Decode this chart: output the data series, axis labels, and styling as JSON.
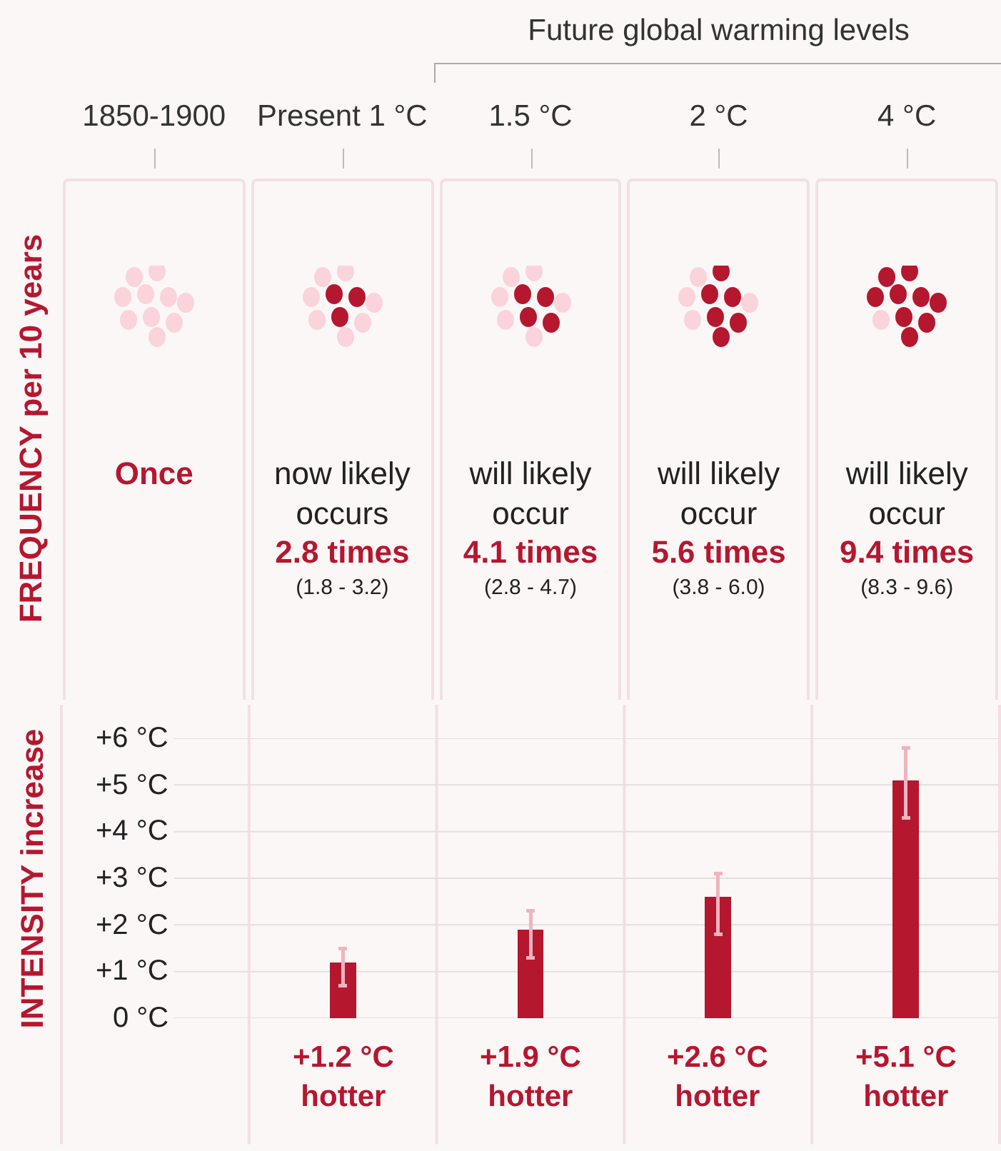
{
  "chart_data": [
    {
      "type": "other",
      "ylabel": "FREQUENCY per 10 years",
      "annotations": [
        "Future global warming levels"
      ],
      "categories": [
        "1850-1900",
        "Present 1 °C",
        "1.5 °C",
        "2 °C",
        "4 °C"
      ],
      "values": [
        null,
        2.8,
        4.1,
        5.6,
        9.4
      ],
      "color": "#b5172f",
      "value_labels": [
        "Once",
        "now likely\noccurs\n2.8 times\n(1.8 - 3.2)",
        "will likely\noccur\n4.1 times\n(2.8 - 4.7)",
        "will likely\noccur\n5.6 times\n(3.8 - 6.0)",
        "will likely\noccur\n9.4 times\n(8.3 - 9.6)"
      ]
    },
    {
      "type": "bar",
      "ylabel": "INTENSITY increase",
      "categories": [
        null,
        null,
        null,
        null,
        null
      ],
      "values": [
        null,
        1.2,
        1.9,
        2.6,
        5.1
      ],
      "errors": [
        null,
        [
          0.7,
          1.5
        ],
        [
          1.3,
          2.3
        ],
        [
          1.8,
          3.1
        ],
        [
          4.3,
          5.8
        ]
      ],
      "color": "#b5172f",
      "value_labels": [
        null,
        "+1.2 °C\nhotter",
        "+1.9 °C\nhotter",
        "+2.6 °C\nhotter",
        "+5.1 °C\nhotter"
      ],
      "ylim": [
        0,
        6
      ],
      "yticks": [
        {
          "value": 0,
          "label": "0 °C"
        },
        {
          "value": 1,
          "label": "+1 °C"
        },
        {
          "value": 2,
          "label": "+2 °C"
        },
        {
          "value": 3,
          "label": "+3 °C"
        },
        {
          "value": 4,
          "label": "+4 °C"
        },
        {
          "value": 5,
          "label": "+5 °C"
        },
        {
          "value": 6,
          "label": "+6 °C"
        }
      ],
      "grid": "y",
      "tick_labels": "y"
    }
  ]
}
